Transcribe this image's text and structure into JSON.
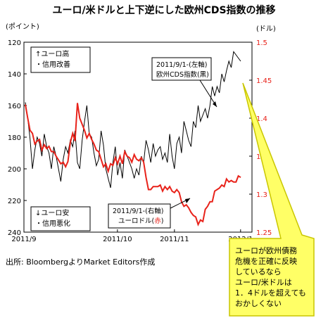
{
  "page": {
    "title": "ユーロ/米ドルと上下逆にした欧州CDS指数の推移",
    "source": "出所: BloombergよりMarket Editors作成"
  },
  "chart_data": {
    "type": "line",
    "left_axis": {
      "unit": "(ポイント)",
      "min": 120,
      "max": 240,
      "inverted": true,
      "ticks": [
        "120",
        "140",
        "160",
        "180",
        "200",
        "220",
        "240"
      ],
      "tick_values": [
        120,
        140,
        160,
        180,
        200,
        220,
        240
      ]
    },
    "right_axis": {
      "unit": "(ドル)",
      "min": 1.25,
      "max": 1.5,
      "ticks": [
        "1.5",
        "1.45",
        "1.4",
        "1.35",
        "1.3",
        "1.25"
      ],
      "tick_values": [
        1.5,
        1.45,
        1.4,
        1.35,
        1.3,
        1.25
      ]
    },
    "x_axis": {
      "labels": [
        "2011/9",
        "2011/10",
        "2011/11",
        "2012/1"
      ],
      "label_pos": [
        0.0,
        0.41,
        0.66,
        0.95
      ]
    },
    "series": [
      {
        "name": "2011/9/1-(左軸)",
        "name2": "欧州CDS指数(黒)",
        "axis": "left",
        "color": "#000000",
        "values": [
          158,
          168,
          181,
          200,
          188,
          180,
          184,
          192,
          178,
          186,
          190,
          200,
          186,
          192,
          200,
          208,
          194,
          186,
          190,
          182,
          186,
          176,
          196,
          200,
          182,
          170,
          160,
          178,
          180,
          190,
          198,
          194,
          176,
          185,
          200,
          206,
          212,
          196,
          186,
          204,
          196,
          206,
          188,
          192,
          196,
          200,
          206,
          200,
          204,
          192,
          196,
          182,
          188,
          196,
          184,
          192,
          188,
          186,
          194,
          190,
          196,
          178,
          192,
          200,
          184,
          180,
          190,
          170,
          176,
          182,
          186,
          170,
          174,
          160,
          170,
          166,
          162,
          168,
          160,
          148,
          154,
          148,
          152,
          140,
          145,
          138,
          132,
          136,
          126,
          128,
          130,
          132
        ]
      },
      {
        "name": "2011/9/1-(右軸)",
        "name2": "ユーロドル(赤)",
        "axis": "right",
        "color": "#e8221a",
        "values": [
          1.418,
          1.4,
          1.384,
          1.38,
          1.366,
          1.37,
          1.372,
          1.358,
          1.365,
          1.36,
          1.363,
          1.356,
          1.356,
          1.35,
          1.345,
          1.34,
          1.342,
          1.336,
          1.343,
          1.368,
          1.38,
          1.37,
          1.42,
          1.4,
          1.392,
          1.384,
          1.374,
          1.38,
          1.372,
          1.366,
          1.358,
          1.356,
          1.346,
          1.336,
          1.34,
          1.33,
          1.34,
          1.338,
          1.348,
          1.34,
          1.35,
          1.34,
          1.356,
          1.35,
          1.348,
          1.342,
          1.352,
          1.346,
          1.344,
          1.348,
          1.342,
          1.322,
          1.306,
          1.306,
          1.31,
          1.31,
          1.31,
          1.312,
          1.304,
          1.31,
          1.306,
          1.31,
          1.304,
          1.302,
          1.306,
          1.302,
          1.29,
          1.284,
          1.286,
          1.282,
          1.276,
          1.272,
          1.27,
          1.26,
          1.266,
          1.264,
          1.28,
          1.284,
          1.29,
          1.29,
          1.304,
          1.306,
          1.308,
          1.312,
          1.31,
          1.32,
          1.316,
          1.318,
          1.316,
          1.316,
          1.324,
          1.322
        ]
      }
    ],
    "legend": {
      "top_box": {
        "line1": "↑ユーロ高",
        "line2": "・信用改善"
      },
      "bottom_box": {
        "line1": "↓ユーロ安",
        "line2": "・信用悪化"
      }
    },
    "callout": {
      "lines": [
        "ユーロが欧州債務",
        "危機を正確に反映",
        "しているなら",
        "ユーロ/米ドルは",
        "1．4ドルを超えても",
        "おかしくない"
      ],
      "fill": "#ffff66",
      "stroke": "#c9c600"
    }
  }
}
